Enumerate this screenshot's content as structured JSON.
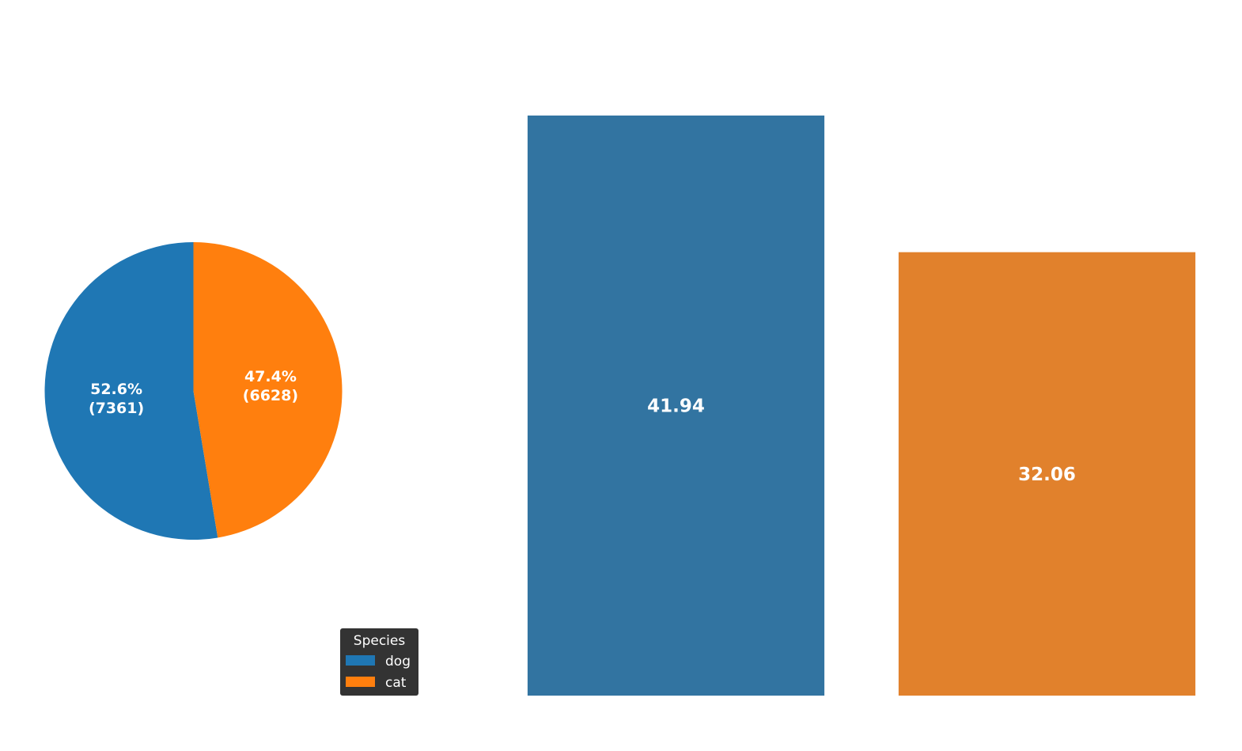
{
  "chart_data": [
    {
      "type": "pie",
      "categories": [
        "dog",
        "cat"
      ],
      "values": [
        7361,
        6628
      ],
      "percent_labels": [
        "52.6%",
        "47.4%"
      ],
      "count_labels": [
        "(7361)",
        "(6628)"
      ],
      "colors": [
        "#1f77b4",
        "#ff7f0e"
      ],
      "start_angle_deg": 90,
      "direction": "counterclockwise",
      "title": "",
      "legend": {
        "title": "Species",
        "placement": "lower-right",
        "entries": [
          "dog",
          "cat"
        ],
        "background": "#333333"
      }
    },
    {
      "type": "bar",
      "categories": [
        "dog",
        "cat"
      ],
      "values": [
        41.94,
        32.06
      ],
      "value_labels": [
        "41.94",
        "32.06"
      ],
      "colors": [
        "#3274a1",
        "#e1812c"
      ],
      "ylim": [
        0,
        41.94
      ],
      "title": "",
      "xlabel": "",
      "ylabel": "",
      "grid": false,
      "axes_visible": false
    }
  ]
}
